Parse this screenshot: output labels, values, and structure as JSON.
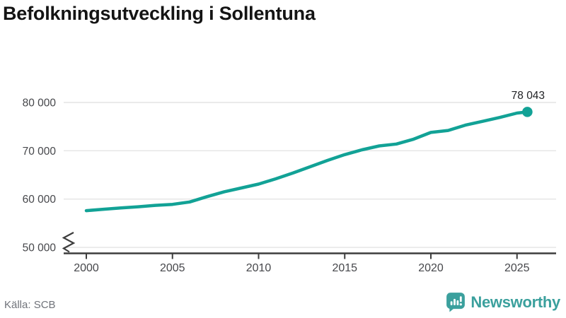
{
  "title": "Befolkningsutveckling i Sollentuna",
  "source": "Källa: SCB",
  "branding": {
    "name": "Newsworthy",
    "icon": "bar-chart-speech-bubble",
    "color": "#3ba09d"
  },
  "colors": {
    "line": "#12a296",
    "grid": "#e4e4e4",
    "axis": "#3d3d3d",
    "tick_label": "#46474b",
    "value_label": "#1f2023",
    "title": "#141414",
    "source": "#70737a"
  },
  "chart_data": {
    "type": "line",
    "title": "Befolkningsutveckling i Sollentuna",
    "xlabel": "",
    "ylabel": "",
    "x": [
      2000,
      2001,
      2002,
      2003,
      2004,
      2005,
      2006,
      2007,
      2008,
      2009,
      2010,
      2011,
      2012,
      2013,
      2014,
      2015,
      2016,
      2017,
      2018,
      2019,
      2020,
      2021,
      2022,
      2023,
      2024,
      2025,
      2025.6
    ],
    "values": [
      57600,
      57900,
      58150,
      58400,
      58700,
      58900,
      59400,
      60500,
      61500,
      62300,
      63100,
      64200,
      65400,
      66700,
      68000,
      69200,
      70200,
      71000,
      71400,
      72400,
      73800,
      74200,
      75300,
      76100,
      76900,
      77800,
      78043
    ],
    "latest_value": 78043,
    "latest_label": "78 043",
    "xticks": {
      "values": [
        2000,
        2005,
        2010,
        2015,
        2020,
        2025
      ],
      "labels": [
        "2000",
        "2005",
        "2010",
        "2015",
        "2020",
        "2025"
      ]
    },
    "yticks": {
      "values": [
        50000,
        60000,
        70000,
        80000
      ],
      "labels": [
        "50 000",
        "60 000",
        "70 000",
        "80 000"
      ]
    },
    "ylim": [
      50000,
      80000
    ],
    "xlim": [
      2000,
      2025.6
    ],
    "axis_break": true,
    "grid": "horizontal",
    "legend": "none"
  }
}
